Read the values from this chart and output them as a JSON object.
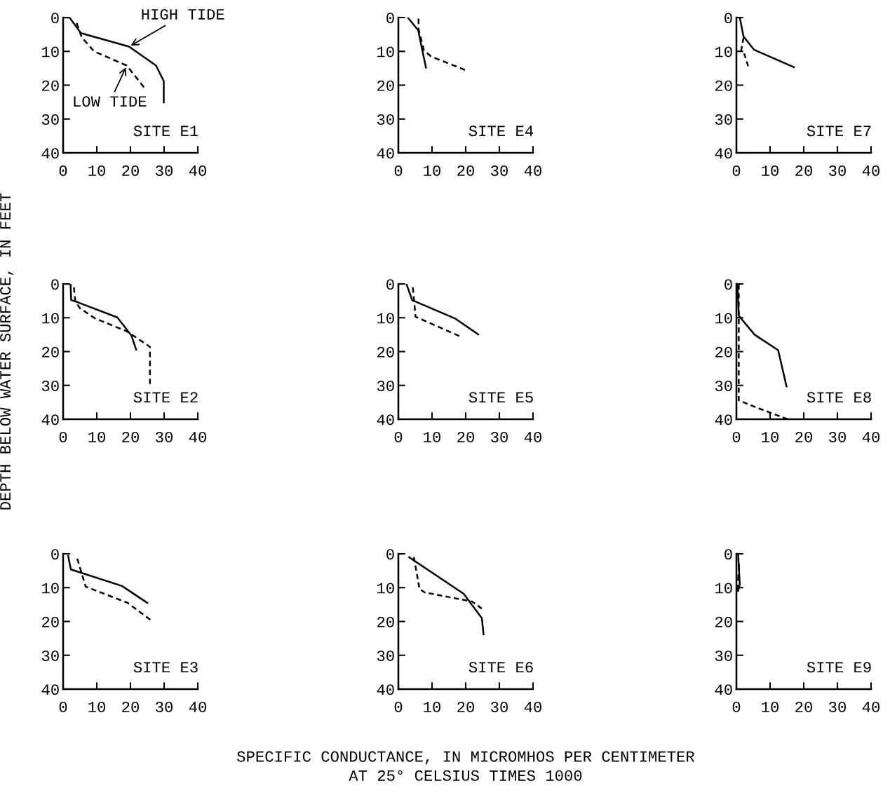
{
  "chart_data": [
    {
      "type": "line",
      "title": "SITE E1",
      "xlim": [
        0,
        40
      ],
      "ylim": [
        40,
        0
      ],
      "xticks": [
        0,
        10,
        20,
        30,
        40
      ],
      "yticks": [
        0,
        10,
        20,
        30,
        40
      ],
      "grid": false,
      "legend": false,
      "series": [
        {
          "color": "#000000",
          "line_style": "solid",
          "x": [
            0.8,
            1.9,
            5.3,
            19.6,
            27.6,
            29.9,
            29.9
          ],
          "values": [
            0,
            0,
            4.6,
            8.6,
            14.2,
            18.8,
            25.1
          ]
        },
        {
          "color": "#000000",
          "line_style": "dashed",
          "x": [
            4,
            5.5,
            9.2,
            18.9,
            24
          ],
          "values": [
            1.6,
            5.8,
            10,
            14.2,
            20.6
          ]
        }
      ],
      "annotations": [
        {
          "text": "HIGH TIDE",
          "x": 19.6,
          "y": 8.6
        },
        {
          "text": "LOW TIDE",
          "x": 18.9,
          "y": 14.2
        }
      ]
    },
    {
      "type": "line",
      "title": "SITE E4",
      "xlim": [
        0,
        40
      ],
      "ylim": [
        40,
        0
      ],
      "xticks": [
        0,
        10,
        20,
        30,
        40
      ],
      "yticks": [
        0,
        10,
        20,
        30,
        40
      ],
      "grid": false,
      "legend": false,
      "series": [
        {
          "color": "#000000",
          "line_style": "solid",
          "x": [
            2.8,
            5.9,
            6.9,
            8.2
          ],
          "values": [
            0,
            3.8,
            8.7,
            14.8
          ]
        },
        {
          "color": "#000000",
          "line_style": "dashed",
          "x": [
            6,
            6,
            7.6,
            9.7,
            19.8
          ],
          "values": [
            0.3,
            3.5,
            9.7,
            11.5,
            15.5
          ]
        }
      ]
    },
    {
      "type": "line",
      "title": "SITE E7",
      "xlim": [
        0,
        40
      ],
      "ylim": [
        40,
        0
      ],
      "xticks": [
        0,
        10,
        20,
        30,
        40
      ],
      "yticks": [
        0,
        10,
        20,
        30,
        40
      ],
      "grid": false,
      "legend": false,
      "series": [
        {
          "color": "#000000",
          "line_style": "solid",
          "x": [
            1,
            2.1,
            5.2,
            17.1
          ],
          "values": [
            0,
            5.6,
            9.5,
            14.7
          ]
        },
        {
          "color": "#000000",
          "line_style": "dashed",
          "x": [
            2.1,
            1.4,
            2.4,
            3.5
          ],
          "values": [
            6,
            9.8,
            10.9,
            14.4
          ]
        }
      ]
    },
    {
      "type": "line",
      "title": "SITE E2",
      "ylabel": "DEPTH BELOW WATER SURFACE, IN FEET",
      "xlim": [
        0,
        40
      ],
      "ylim": [
        40,
        0
      ],
      "xticks": [
        0,
        10,
        20,
        30,
        40
      ],
      "yticks": [
        0,
        10,
        20,
        30,
        40
      ],
      "grid": false,
      "legend": false,
      "series": [
        {
          "color": "#000000",
          "line_style": "solid",
          "x": [
            1.2,
            2.2,
            2.4,
            4.3,
            16.1,
            20.3,
            21.7
          ],
          "values": [
            0,
            0,
            4.8,
            5.4,
            9.9,
            15.3,
            19.4
          ]
        },
        {
          "color": "#000000",
          "line_style": "dashed",
          "x": [
            3.2,
            3.6,
            5,
            9.5,
            18.9,
            25.8,
            25.8
          ],
          "values": [
            1,
            5.1,
            7.2,
            10.2,
            14,
            18.6,
            29.6
          ]
        }
      ]
    },
    {
      "type": "line",
      "title": "SITE E5",
      "xlim": [
        0,
        40
      ],
      "ylim": [
        40,
        0
      ],
      "xticks": [
        0,
        10,
        20,
        30,
        40
      ],
      "yticks": [
        0,
        10,
        20,
        30,
        40
      ],
      "grid": false,
      "legend": false,
      "series": [
        {
          "color": "#000000",
          "line_style": "solid",
          "x": [
            2.4,
            4.1,
            17,
            23.7
          ],
          "values": [
            0,
            4.8,
            10.3,
            14.9
          ]
        },
        {
          "color": "#000000",
          "line_style": "dashed",
          "x": [
            4.3,
            5.1,
            18.1
          ],
          "values": [
            1,
            9.7,
            15.4
          ]
        }
      ]
    },
    {
      "type": "line",
      "title": "SITE E8",
      "xlim": [
        0,
        40
      ],
      "ylim": [
        40,
        0
      ],
      "xticks": [
        0,
        10,
        20,
        30,
        40
      ],
      "yticks": [
        0,
        10,
        20,
        30,
        40
      ],
      "grid": false,
      "legend": false,
      "series": [
        {
          "color": "#000000",
          "line_style": "solid",
          "x": [
            0.3,
            0.7,
            5.4,
            12.4,
            14.9
          ],
          "values": [
            0,
            9.4,
            15,
            19.6,
            30.3
          ]
        },
        {
          "color": "#000000",
          "line_style": "dashed",
          "x": [
            0.7,
            0.7,
            5.6,
            15.2
          ],
          "values": [
            0.2,
            34.4,
            36.4,
            40
          ]
        }
      ]
    },
    {
      "type": "line",
      "title": "SITE E3",
      "xlim": [
        0,
        40
      ],
      "ylim": [
        40,
        0
      ],
      "xticks": [
        0,
        10,
        20,
        30,
        40
      ],
      "yticks": [
        0,
        10,
        20,
        30,
        40
      ],
      "grid": false,
      "legend": false,
      "series": [
        {
          "color": "#000000",
          "line_style": "solid",
          "x": [
            1.5,
            2.3,
            17.5,
            25
          ],
          "values": [
            0.6,
            4.6,
            9.5,
            14.5
          ]
        },
        {
          "color": "#000000",
          "line_style": "dashed",
          "x": [
            4.2,
            6.7,
            19.2,
            25.9
          ],
          "values": [
            1.4,
            9.7,
            14.5,
            19.5
          ]
        }
      ]
    },
    {
      "type": "line",
      "title": "SITE E6",
      "xlabel": "SPECIFIC CONDUCTANCE, IN MICROMHOS PER CENTIMETER\nAT 25° CELSIUS TIMES 1000",
      "xlim": [
        0,
        40
      ],
      "ylim": [
        40,
        0
      ],
      "xticks": [
        0,
        10,
        20,
        30,
        40
      ],
      "yticks": [
        0,
        10,
        20,
        30,
        40
      ],
      "grid": false,
      "legend": false,
      "series": [
        {
          "color": "#000000",
          "line_style": "solid",
          "x": [
            3.2,
            19.4,
            24.8,
            25.3
          ],
          "values": [
            1,
            11.8,
            19,
            23.8
          ]
        },
        {
          "color": "#000000",
          "line_style": "dashed",
          "x": [
            4.6,
            6.3,
            7.8,
            21.9,
            24.8
          ],
          "values": [
            1,
            10.4,
            11.4,
            14.1,
            16.2
          ]
        }
      ]
    },
    {
      "type": "line",
      "title": "SITE E9",
      "xlim": [
        0,
        40
      ],
      "ylim": [
        40,
        0
      ],
      "xticks": [
        0,
        10,
        20,
        30,
        40
      ],
      "yticks": [
        0,
        10,
        20,
        30,
        40
      ],
      "grid": false,
      "legend": false,
      "series": [
        {
          "color": "#000000",
          "line_style": "solid",
          "x": [
            0.5,
            1,
            0.5
          ],
          "values": [
            0,
            9,
            11
          ]
        },
        {
          "color": "#000000",
          "line_style": "dashed",
          "x": [
            0.8,
            0.3
          ],
          "values": [
            3,
            11
          ]
        }
      ]
    }
  ]
}
